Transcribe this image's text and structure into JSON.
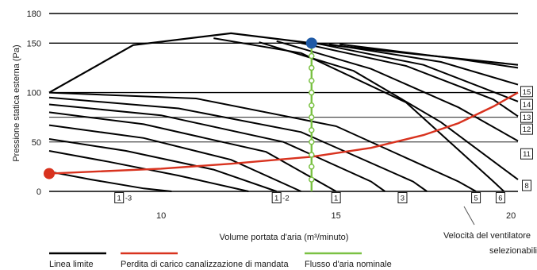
{
  "colors": {
    "limit_line": "#000000",
    "pressure_loss": "#d8321e",
    "nominal_flow": "#7ac143",
    "grid": "#000000",
    "text": "#1a1a1a"
  },
  "chart_data": {
    "type": "line",
    "ylabel": "Pressione statica esterna (Pa)",
    "xlabel": "Volume portata d'aria (m³/minuto)",
    "xlim": [
      6.8,
      20.2
    ],
    "ylim": [
      0,
      180
    ],
    "x_ticks": [
      "10",
      "15",
      "20"
    ],
    "y_ticks": [
      "0",
      "50",
      "100",
      "150",
      "180"
    ],
    "y_tick_values": [
      0,
      50,
      100,
      150,
      180
    ],
    "x_tick_values": [
      10,
      15,
      20
    ],
    "grid_y": [
      50,
      75,
      100,
      150,
      180
    ],
    "fan_speed_title": "Velocità del ventilatore selezionabili",
    "fan_curves": [
      {
        "label": "1-3",
        "points": [
          [
            6.8,
            20
          ],
          [
            8,
            12
          ],
          [
            9.5,
            3
          ],
          [
            10.3,
            0
          ]
        ]
      },
      {
        "label": "",
        "points": [
          [
            6.8,
            41
          ],
          [
            8.5,
            30
          ],
          [
            10.5,
            16
          ],
          [
            12.5,
            0
          ]
        ]
      },
      {
        "label": "",
        "points": [
          [
            6.8,
            53
          ],
          [
            9,
            41
          ],
          [
            11.5,
            22
          ],
          [
            13.3,
            0
          ]
        ]
      },
      {
        "label": "1-2",
        "points": [
          [
            6.8,
            67
          ],
          [
            9.5,
            54
          ],
          [
            12,
            32
          ],
          [
            14,
            0
          ]
        ]
      },
      {
        "label": "1",
        "points": [
          [
            6.8,
            80
          ],
          [
            9.5,
            68
          ],
          [
            13,
            40
          ],
          [
            15,
            0
          ]
        ]
      },
      {
        "label": "",
        "points": [
          [
            6.8,
            88
          ],
          [
            10,
            77
          ],
          [
            13.5,
            50
          ],
          [
            16,
            10
          ],
          [
            16.4,
            0
          ]
        ]
      },
      {
        "label": "3",
        "points": [
          [
            6.8,
            95
          ],
          [
            10.5,
            84
          ],
          [
            14,
            60
          ],
          [
            17.2,
            10
          ],
          [
            17.6,
            0
          ]
        ]
      },
      {
        "label": "5",
        "points": [
          [
            6.8,
            100
          ],
          [
            11,
            94
          ],
          [
            15,
            66
          ],
          [
            18.5,
            10
          ],
          [
            19,
            0
          ]
        ]
      },
      {
        "label": "6",
        "points": [
          [
            11.5,
            155
          ],
          [
            14,
            140
          ],
          [
            17,
            90
          ],
          [
            19.5,
            10
          ],
          [
            19.8,
            0
          ]
        ]
      },
      {
        "label": "8",
        "points": [
          [
            12.8,
            151
          ],
          [
            15.5,
            122
          ],
          [
            18,
            70
          ],
          [
            20.2,
            12
          ]
        ]
      },
      {
        "label": "11",
        "points": [
          [
            13.3,
            152
          ],
          [
            16,
            124
          ],
          [
            18.5,
            85
          ],
          [
            20.2,
            51
          ]
        ]
      },
      {
        "label": "12",
        "points": [
          [
            14,
            150
          ],
          [
            17,
            127
          ],
          [
            19.5,
            93
          ],
          [
            20.2,
            76
          ]
        ]
      },
      {
        "label": "13",
        "points": [
          [
            14.4,
            150
          ],
          [
            17.5,
            128
          ],
          [
            20.2,
            91
          ]
        ]
      },
      {
        "label": "14",
        "points": [
          [
            14.8,
            149
          ],
          [
            18,
            131
          ],
          [
            20.2,
            108
          ]
        ]
      },
      {
        "label": "15",
        "points": [
          [
            15.1,
            149
          ],
          [
            18.5,
            134
          ],
          [
            20.2,
            125
          ]
        ]
      }
    ],
    "limit_line": [
      [
        6.8,
        100
      ],
      [
        9.2,
        148
      ],
      [
        12,
        160
      ],
      [
        14.3,
        150
      ],
      [
        20.2,
        128
      ]
    ],
    "pressure_loss_curve": {
      "points": [
        [
          6.8,
          18
        ],
        [
          10,
          23
        ],
        [
          12,
          28
        ],
        [
          14.3,
          35
        ],
        [
          16,
          44
        ],
        [
          17.5,
          57
        ],
        [
          18.5,
          69
        ],
        [
          19.5,
          86
        ],
        [
          20.2,
          100
        ]
      ],
      "start_marker": [
        6.8,
        18
      ]
    },
    "nominal_flow": {
      "x": 14.3,
      "y_top": 150,
      "marker_values": [
        137,
        125,
        112,
        100,
        87,
        75,
        62,
        50,
        37,
        25,
        12
      ]
    },
    "box_labels_bottom": [
      {
        "x": 8.8,
        "text": "1",
        "suffix": "-3"
      },
      {
        "x": 13.3,
        "text": "1",
        "suffix": "-2"
      },
      {
        "x": 15.0,
        "text": "1",
        "suffix": ""
      },
      {
        "x": 16.9,
        "text": "3",
        "suffix": ""
      },
      {
        "x": 19.0,
        "text": "5",
        "suffix": ""
      },
      {
        "x": 19.7,
        "text": "6",
        "suffix": ""
      }
    ],
    "box_labels_right": [
      {
        "y": 101,
        "text": "15"
      },
      {
        "y": 88,
        "text": "14"
      },
      {
        "y": 75,
        "text": "13"
      },
      {
        "y": 63,
        "text": "12"
      },
      {
        "y": 38,
        "text": "11"
      },
      {
        "y": 6,
        "text": "8"
      }
    ],
    "legend": [
      {
        "name": "Linea limite",
        "color": "#000000"
      },
      {
        "name": "Perdita di carico canalizzazione di mandata",
        "color": "#d8321e"
      },
      {
        "name": "Flusso d'aria nominale",
        "color": "#7ac143"
      }
    ]
  }
}
